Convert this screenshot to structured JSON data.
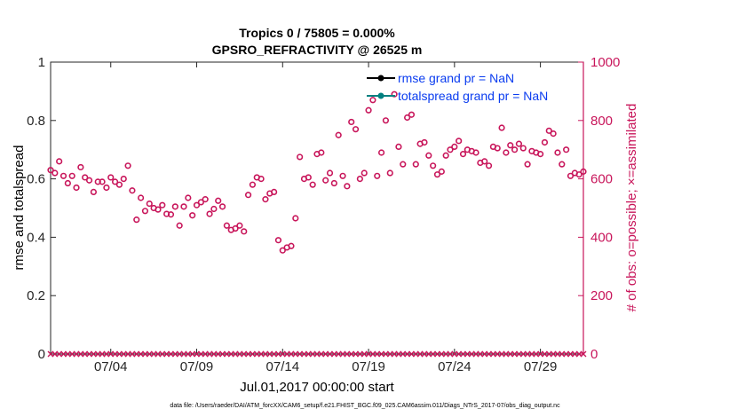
{
  "colors": {
    "axis": "#262626",
    "accent": "#c8155a",
    "legend_text": "#0a3cf0",
    "rmse": "#000000",
    "spread": "#008080"
  },
  "chart_data": {
    "type": "scatter",
    "title": "Tropics 0 / 75805 = 0.000%",
    "subtitle": "GPSRO_REFRACTIVITY @ 26525 m",
    "xlabel": "Jul.01,2017 00:00:00 start",
    "ylabel": "rmse and totalspread",
    "ylabel_right": "# of obs: o=possible; ×=assimilated",
    "footnote": "data file: /Users/raeder/DAI/ATM_forcXX/CAM6_setup/f.e21.FHIST_BGC.f09_025.CAM6assim.011/Diags_NTrS_2017-07/obs_diag_output.nc",
    "xlim": [
      0,
      31
    ],
    "ylim": [
      0,
      1
    ],
    "ylim_right": [
      0,
      1000
    ],
    "xticks": [
      {
        "x": 3.5,
        "label": "07/04"
      },
      {
        "x": 8.5,
        "label": "07/09"
      },
      {
        "x": 13.5,
        "label": "07/14"
      },
      {
        "x": 18.5,
        "label": "07/19"
      },
      {
        "x": 23.5,
        "label": "07/24"
      },
      {
        "x": 28.5,
        "label": "07/29"
      }
    ],
    "yticks": [
      {
        "v": 0,
        "label": "0"
      },
      {
        "v": 0.2,
        "label": "0.2"
      },
      {
        "v": 0.4,
        "label": "0.4"
      },
      {
        "v": 0.6,
        "label": "0.6"
      },
      {
        "v": 0.8,
        "label": "0.8"
      },
      {
        "v": 1,
        "label": "1"
      }
    ],
    "yticks_right": [
      {
        "v": 0,
        "label": "0"
      },
      {
        "v": 200,
        "label": "200"
      },
      {
        "v": 400,
        "label": "400"
      },
      {
        "v": 600,
        "label": "600"
      },
      {
        "v": 800,
        "label": "800"
      },
      {
        "v": 1000,
        "label": "1000"
      }
    ],
    "legend": [
      {
        "name": "rmse grand pr = NaN",
        "color": "#000000"
      },
      {
        "name": "totalspread grand pr = NaN",
        "color": "#008080"
      }
    ],
    "possible_obs": [
      {
        "x": 0.0,
        "y": 630
      },
      {
        "x": 0.25,
        "y": 620
      },
      {
        "x": 0.5,
        "y": 660
      },
      {
        "x": 0.75,
        "y": 610
      },
      {
        "x": 1.0,
        "y": 585
      },
      {
        "x": 1.25,
        "y": 610
      },
      {
        "x": 1.5,
        "y": 570
      },
      {
        "x": 1.75,
        "y": 640
      },
      {
        "x": 2.0,
        "y": 605
      },
      {
        "x": 2.25,
        "y": 595
      },
      {
        "x": 2.5,
        "y": 555
      },
      {
        "x": 2.75,
        "y": 590
      },
      {
        "x": 3.0,
        "y": 590
      },
      {
        "x": 3.25,
        "y": 570
      },
      {
        "x": 3.5,
        "y": 605
      },
      {
        "x": 3.75,
        "y": 590
      },
      {
        "x": 4.0,
        "y": 580
      },
      {
        "x": 4.25,
        "y": 600
      },
      {
        "x": 4.5,
        "y": 645
      },
      {
        "x": 4.75,
        "y": 560
      },
      {
        "x": 5.0,
        "y": 460
      },
      {
        "x": 5.25,
        "y": 535
      },
      {
        "x": 5.5,
        "y": 490
      },
      {
        "x": 5.75,
        "y": 515
      },
      {
        "x": 6.0,
        "y": 500
      },
      {
        "x": 6.25,
        "y": 495
      },
      {
        "x": 6.5,
        "y": 510
      },
      {
        "x": 6.75,
        "y": 480
      },
      {
        "x": 7.0,
        "y": 478
      },
      {
        "x": 7.25,
        "y": 505
      },
      {
        "x": 7.5,
        "y": 440
      },
      {
        "x": 7.75,
        "y": 505
      },
      {
        "x": 8.0,
        "y": 535
      },
      {
        "x": 8.25,
        "y": 475
      },
      {
        "x": 8.5,
        "y": 510
      },
      {
        "x": 8.75,
        "y": 520
      },
      {
        "x": 9.0,
        "y": 530
      },
      {
        "x": 9.25,
        "y": 480
      },
      {
        "x": 9.5,
        "y": 497
      },
      {
        "x": 9.75,
        "y": 525
      },
      {
        "x": 10.0,
        "y": 505
      },
      {
        "x": 10.25,
        "y": 440
      },
      {
        "x": 10.5,
        "y": 425
      },
      {
        "x": 10.75,
        "y": 430
      },
      {
        "x": 11.0,
        "y": 440
      },
      {
        "x": 11.25,
        "y": 420
      },
      {
        "x": 11.5,
        "y": 545
      },
      {
        "x": 11.75,
        "y": 580
      },
      {
        "x": 12.0,
        "y": 605
      },
      {
        "x": 12.25,
        "y": 600
      },
      {
        "x": 12.5,
        "y": 530
      },
      {
        "x": 12.75,
        "y": 550
      },
      {
        "x": 13.0,
        "y": 555
      },
      {
        "x": 13.25,
        "y": 390
      },
      {
        "x": 13.5,
        "y": 355
      },
      {
        "x": 13.75,
        "y": 365
      },
      {
        "x": 14.0,
        "y": 370
      },
      {
        "x": 14.25,
        "y": 465
      },
      {
        "x": 14.5,
        "y": 675
      },
      {
        "x": 14.75,
        "y": 600
      },
      {
        "x": 15.0,
        "y": 605
      },
      {
        "x": 15.25,
        "y": 580
      },
      {
        "x": 15.5,
        "y": 685
      },
      {
        "x": 15.75,
        "y": 690
      },
      {
        "x": 16.0,
        "y": 595
      },
      {
        "x": 16.25,
        "y": 620
      },
      {
        "x": 16.5,
        "y": 585
      },
      {
        "x": 16.75,
        "y": 750
      },
      {
        "x": 17.0,
        "y": 610
      },
      {
        "x": 17.25,
        "y": 575
      },
      {
        "x": 17.5,
        "y": 795
      },
      {
        "x": 17.75,
        "y": 770
      },
      {
        "x": 18.0,
        "y": 600
      },
      {
        "x": 18.25,
        "y": 620
      },
      {
        "x": 18.5,
        "y": 835
      },
      {
        "x": 18.75,
        "y": 870
      },
      {
        "x": 19.0,
        "y": 610
      },
      {
        "x": 19.25,
        "y": 690
      },
      {
        "x": 19.5,
        "y": 800
      },
      {
        "x": 19.75,
        "y": 620
      },
      {
        "x": 20.0,
        "y": 890
      },
      {
        "x": 20.25,
        "y": 710
      },
      {
        "x": 20.5,
        "y": 650
      },
      {
        "x": 20.75,
        "y": 810
      },
      {
        "x": 21.0,
        "y": 820
      },
      {
        "x": 21.25,
        "y": 650
      },
      {
        "x": 21.5,
        "y": 720
      },
      {
        "x": 21.75,
        "y": 725
      },
      {
        "x": 22.0,
        "y": 680
      },
      {
        "x": 22.25,
        "y": 645
      },
      {
        "x": 22.5,
        "y": 615
      },
      {
        "x": 22.75,
        "y": 625
      },
      {
        "x": 23.0,
        "y": 680
      },
      {
        "x": 23.25,
        "y": 700
      },
      {
        "x": 23.5,
        "y": 710
      },
      {
        "x": 23.75,
        "y": 730
      },
      {
        "x": 24.0,
        "y": 685
      },
      {
        "x": 24.25,
        "y": 700
      },
      {
        "x": 24.5,
        "y": 695
      },
      {
        "x": 24.75,
        "y": 690
      },
      {
        "x": 25.0,
        "y": 655
      },
      {
        "x": 25.25,
        "y": 660
      },
      {
        "x": 25.5,
        "y": 645
      },
      {
        "x": 25.75,
        "y": 710
      },
      {
        "x": 26.0,
        "y": 705
      },
      {
        "x": 26.25,
        "y": 775
      },
      {
        "x": 26.5,
        "y": 690
      },
      {
        "x": 26.75,
        "y": 715
      },
      {
        "x": 27.0,
        "y": 700
      },
      {
        "x": 27.25,
        "y": 720
      },
      {
        "x": 27.5,
        "y": 705
      },
      {
        "x": 27.75,
        "y": 650
      },
      {
        "x": 28.0,
        "y": 695
      },
      {
        "x": 28.25,
        "y": 690
      },
      {
        "x": 28.5,
        "y": 685
      },
      {
        "x": 28.75,
        "y": 725
      },
      {
        "x": 29.0,
        "y": 765
      },
      {
        "x": 29.25,
        "y": 755
      },
      {
        "x": 29.5,
        "y": 690
      },
      {
        "x": 29.75,
        "y": 650
      },
      {
        "x": 30.0,
        "y": 700
      },
      {
        "x": 30.25,
        "y": 610
      },
      {
        "x": 30.5,
        "y": 620
      },
      {
        "x": 30.75,
        "y": 615
      },
      {
        "x": 31.0,
        "y": 625
      },
      {
        "x": 31.25,
        "y": 635
      }
    ],
    "assimilated_obs": {
      "x_start": 0,
      "x_step": 0.25,
      "count": 126,
      "value": 0
    }
  }
}
